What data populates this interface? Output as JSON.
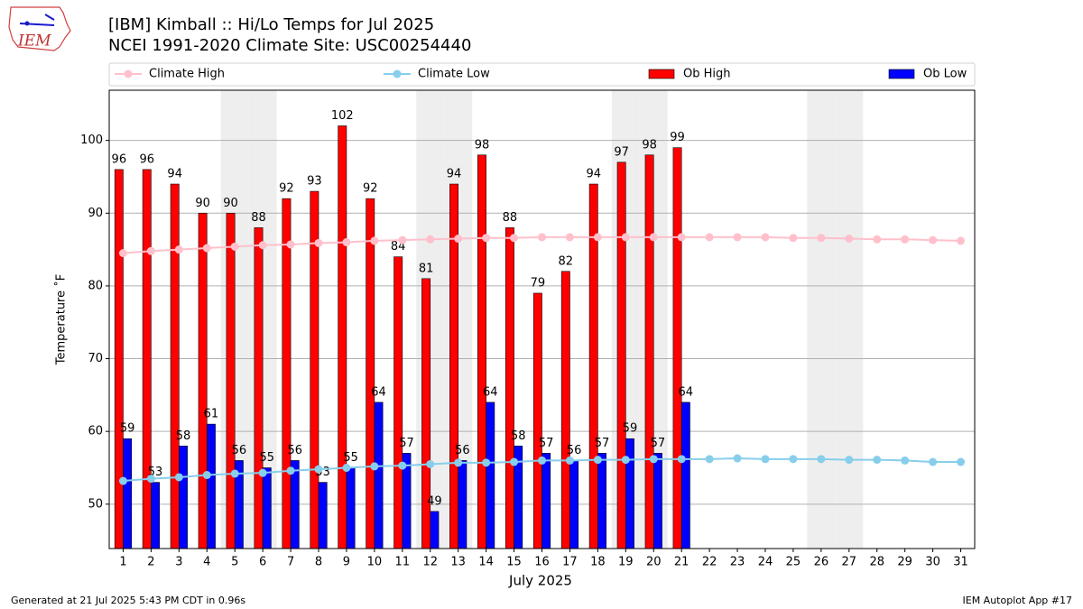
{
  "chart_data": {
    "type": "bar",
    "title": "[IBM] Kimball :: Hi/Lo Temps for Jul 2025",
    "subtitle": "NCEI 1991-2020 Climate Site: USC00254440",
    "x_label": "July 2025",
    "y_label": "Temperature ˚F",
    "logo_text": "IEM",
    "footer_left": "Generated at 21 Jul 2025 5:43 PM CDT in 0.96s",
    "footer_right": "IEM Autoplot App #17",
    "x": [
      1,
      2,
      3,
      4,
      5,
      6,
      7,
      8,
      9,
      10,
      11,
      12,
      13,
      14,
      15,
      16,
      17,
      18,
      19,
      20,
      21,
      22,
      23,
      24,
      25,
      26,
      27,
      28,
      29,
      30,
      31
    ],
    "xlim": [
      0.5,
      31.5
    ],
    "xticks": [
      1,
      2,
      3,
      4,
      5,
      6,
      7,
      8,
      9,
      10,
      11,
      12,
      13,
      14,
      15,
      16,
      17,
      18,
      19,
      20,
      21,
      22,
      23,
      24,
      25,
      26,
      27,
      28,
      29,
      30,
      31
    ],
    "ylim": [
      43.9,
      106.9
    ],
    "yticks": [
      50,
      60,
      70,
      80,
      90,
      100
    ],
    "grid": true,
    "shaded_days": [
      5,
      6,
      12,
      13,
      19,
      20,
      26,
      27
    ],
    "series": [
      {
        "name": "Climate High",
        "type": "line",
        "color": "#ffc0cb",
        "values": [
          84.5,
          84.8,
          85.0,
          85.2,
          85.4,
          85.6,
          85.7,
          85.9,
          86.0,
          86.2,
          86.3,
          86.4,
          86.5,
          86.6,
          86.6,
          86.7,
          86.7,
          86.7,
          86.7,
          86.7,
          86.7,
          86.7,
          86.7,
          86.7,
          86.6,
          86.6,
          86.5,
          86.4,
          86.4,
          86.3,
          86.2
        ]
      },
      {
        "name": "Climate Low",
        "type": "line",
        "color": "#87ceeb",
        "values": [
          53.2,
          53.5,
          53.7,
          54.0,
          54.2,
          54.3,
          54.6,
          54.8,
          55.0,
          55.2,
          55.3,
          55.5,
          55.7,
          55.7,
          55.8,
          56.0,
          56.0,
          56.1,
          56.1,
          56.2,
          56.2,
          56.2,
          56.3,
          56.2,
          56.2,
          56.2,
          56.1,
          56.1,
          56.0,
          55.8,
          55.8
        ]
      },
      {
        "name": "Ob High",
        "type": "bar",
        "color": "#ff0000",
        "values": [
          96,
          96,
          94,
          90,
          90,
          88,
          92,
          93,
          102,
          92,
          84,
          81,
          94,
          98,
          88,
          79,
          82,
          94,
          97,
          98,
          99,
          null,
          null,
          null,
          null,
          null,
          null,
          null,
          null,
          null,
          null
        ]
      },
      {
        "name": "Ob Low",
        "type": "bar",
        "color": "#0000ff",
        "values": [
          59,
          53,
          58,
          61,
          56,
          55,
          56,
          53,
          55,
          64,
          57,
          49,
          56,
          64,
          58,
          57,
          56,
          57,
          59,
          57,
          64,
          null,
          null,
          null,
          null,
          null,
          null,
          null,
          null,
          null,
          null
        ]
      }
    ]
  }
}
